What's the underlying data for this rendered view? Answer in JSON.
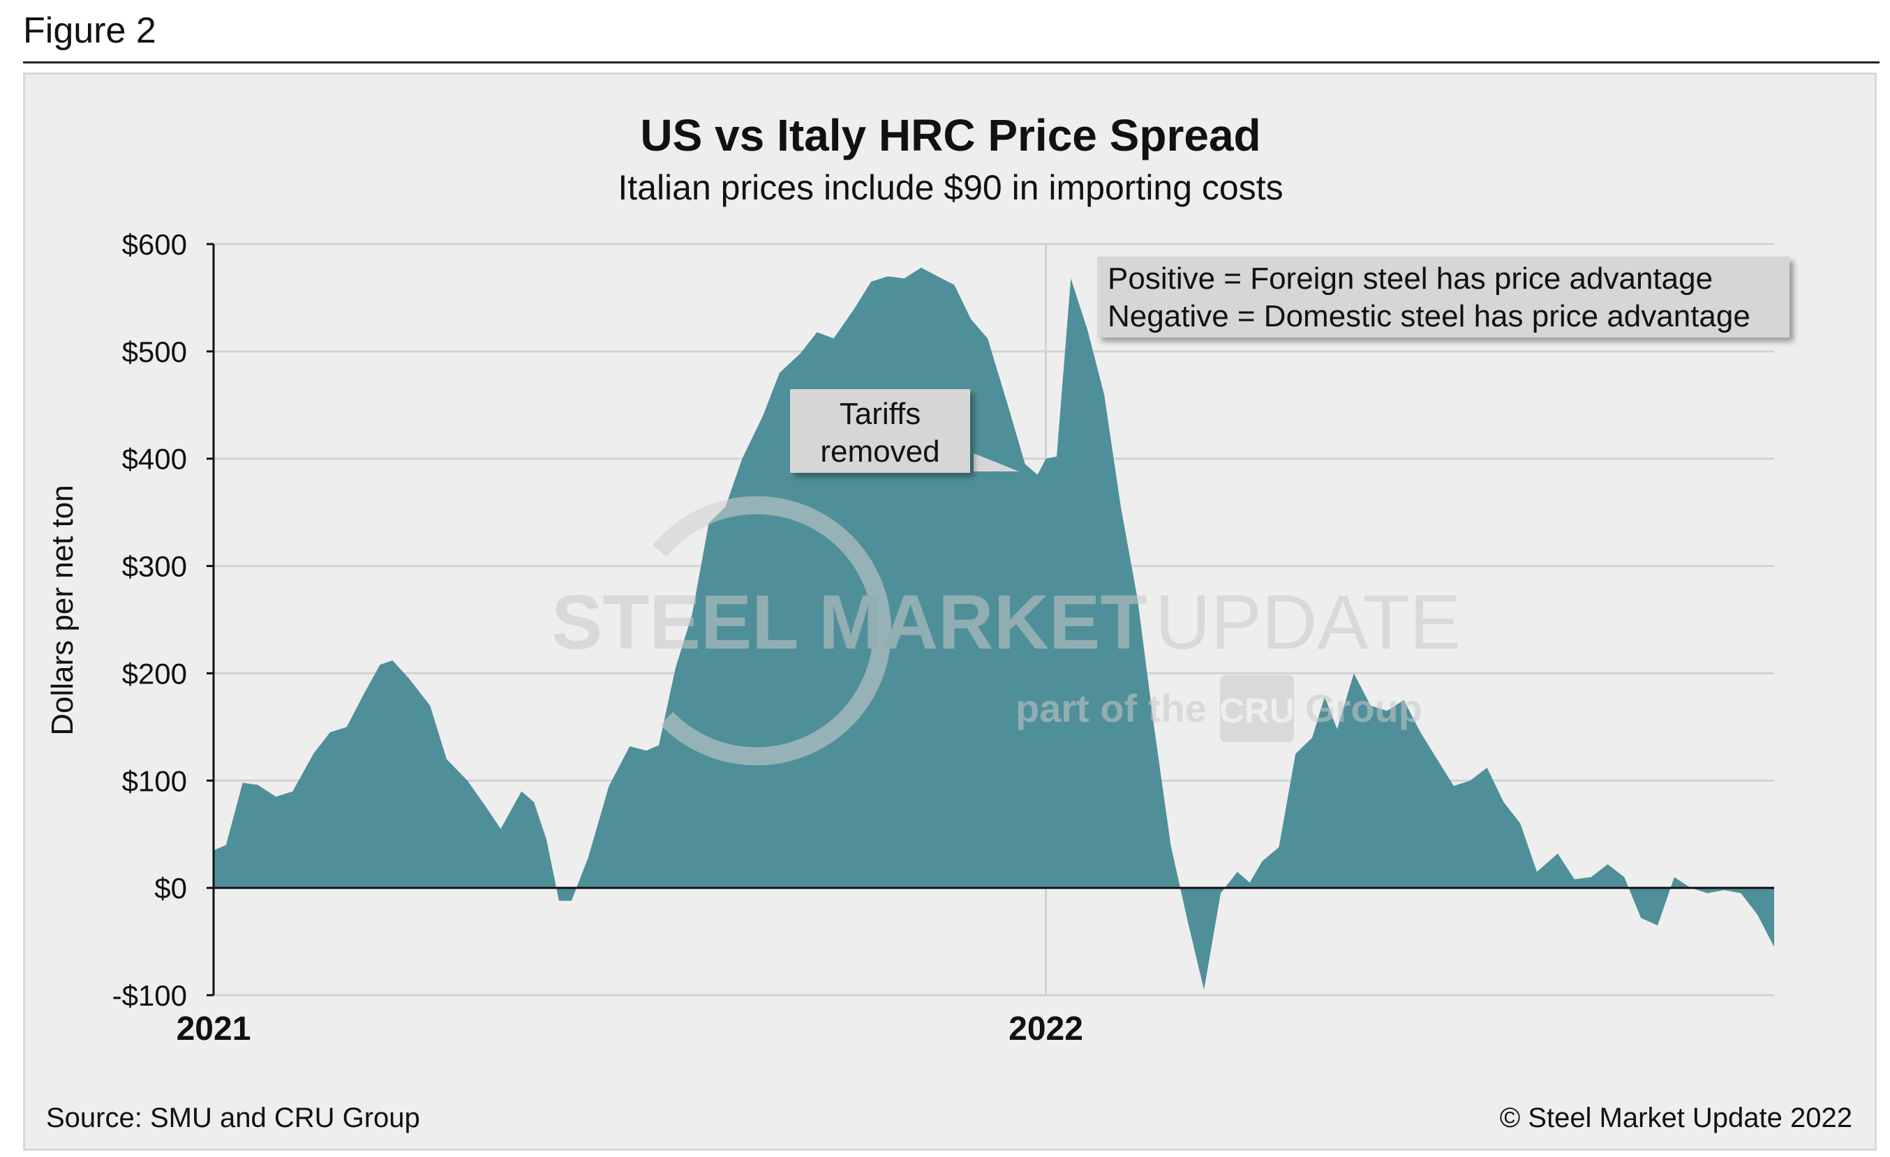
{
  "figure_label": "Figure 2",
  "chart_data": {
    "type": "area",
    "title": "US vs Italy HRC Price Spread",
    "subtitle": "Italian prices include $90 in importing costs",
    "ylabel": "Dollars per net ton",
    "xlabel": "",
    "ylim": [
      -100,
      600
    ],
    "yticks": [
      {
        "value": 600,
        "label": "$600"
      },
      {
        "value": 500,
        "label": "$500"
      },
      {
        "value": 400,
        "label": "$400"
      },
      {
        "value": 300,
        "label": "$300"
      },
      {
        "value": 200,
        "label": "$200"
      },
      {
        "value": 100,
        "label": "$100"
      },
      {
        "value": 0,
        "label": "$0"
      },
      {
        "value": -100,
        "label": "-$100"
      }
    ],
    "xlim": [
      2021.0,
      2022.875
    ],
    "xticks": [
      {
        "value": 2021.0,
        "label": "2021"
      },
      {
        "value": 2022.0,
        "label": "2022"
      }
    ],
    "grid": true,
    "series": [
      {
        "color": "#4f8f99",
        "x": [
          2021.0,
          2021.015,
          2021.035,
          2021.053,
          2021.075,
          2021.095,
          2021.12,
          2021.14,
          2021.16,
          2021.18,
          2021.2,
          2021.215,
          2021.235,
          2021.26,
          2021.28,
          2021.305,
          2021.325,
          2021.345,
          2021.37,
          2021.385,
          2021.4,
          2021.415,
          2021.43,
          2021.45,
          2021.475,
          2021.5,
          2021.52,
          2021.535,
          2021.555,
          2021.575,
          2021.595,
          2021.615,
          2021.635,
          2021.66,
          2021.68,
          2021.705,
          2021.725,
          2021.745,
          2021.77,
          2021.79,
          2021.81,
          2021.83,
          2021.85,
          2021.87,
          2021.89,
          2021.91,
          2021.93,
          2021.955,
          2021.975,
          2021.99,
          2022.0,
          2022.013,
          2022.03,
          2022.05,
          2022.07,
          2022.09,
          2022.11,
          2022.13,
          2022.15,
          2022.17,
          2022.19,
          2022.21,
          2022.23,
          2022.245,
          2022.26,
          2022.28,
          2022.3,
          2022.32,
          2022.335,
          2022.35,
          2022.37,
          2022.39,
          2022.41,
          2022.43,
          2022.45,
          2022.47,
          2022.49,
          2022.51,
          2022.53,
          2022.55,
          2022.57,
          2022.59,
          2022.615,
          2022.635,
          2022.655,
          2022.675,
          2022.695,
          2022.715,
          2022.735,
          2022.755,
          2022.775,
          2022.795,
          2022.815,
          2022.835,
          2022.855,
          2022.875
        ],
        "values": [
          35,
          40,
          98,
          96,
          85,
          90,
          125,
          145,
          150,
          180,
          208,
          212,
          195,
          170,
          120,
          100,
          78,
          55,
          90,
          80,
          45,
          -12,
          -12,
          28,
          95,
          132,
          128,
          133,
          205,
          255,
          340,
          355,
          400,
          440,
          480,
          498,
          518,
          512,
          540,
          565,
          570,
          568,
          578,
          570,
          562,
          530,
          512,
          448,
          395,
          385,
          400,
          402,
          568,
          520,
          460,
          355,
          270,
          150,
          40,
          -30,
          -95,
          -5,
          15,
          5,
          25,
          38,
          125,
          140,
          178,
          148,
          200,
          170,
          165,
          175,
          145,
          120,
          95,
          100,
          112,
          80,
          60,
          15,
          32,
          8,
          10,
          22,
          10,
          -28,
          -35,
          10,
          0,
          -5,
          -2,
          -5,
          -25,
          -55
        ]
      }
    ],
    "annotations": [
      {
        "lines": [
          "Tariffs",
          "removed"
        ]
      }
    ],
    "legend_box": {
      "lines": [
        "Positive = Foreign steel has price advantage",
        "Negative = Domestic steel has price advantage"
      ],
      "placement": "top-right"
    }
  },
  "watermark": {
    "brand_left": "STEEL MARKET",
    "brand_right": "UPDATE",
    "tagline_left": "part of the",
    "tagline_badge": "CRU",
    "tagline_right": "Group"
  },
  "footer": {
    "source": "Source: SMU and CRU Group",
    "copyright": "© Steel Market Update 2022"
  }
}
